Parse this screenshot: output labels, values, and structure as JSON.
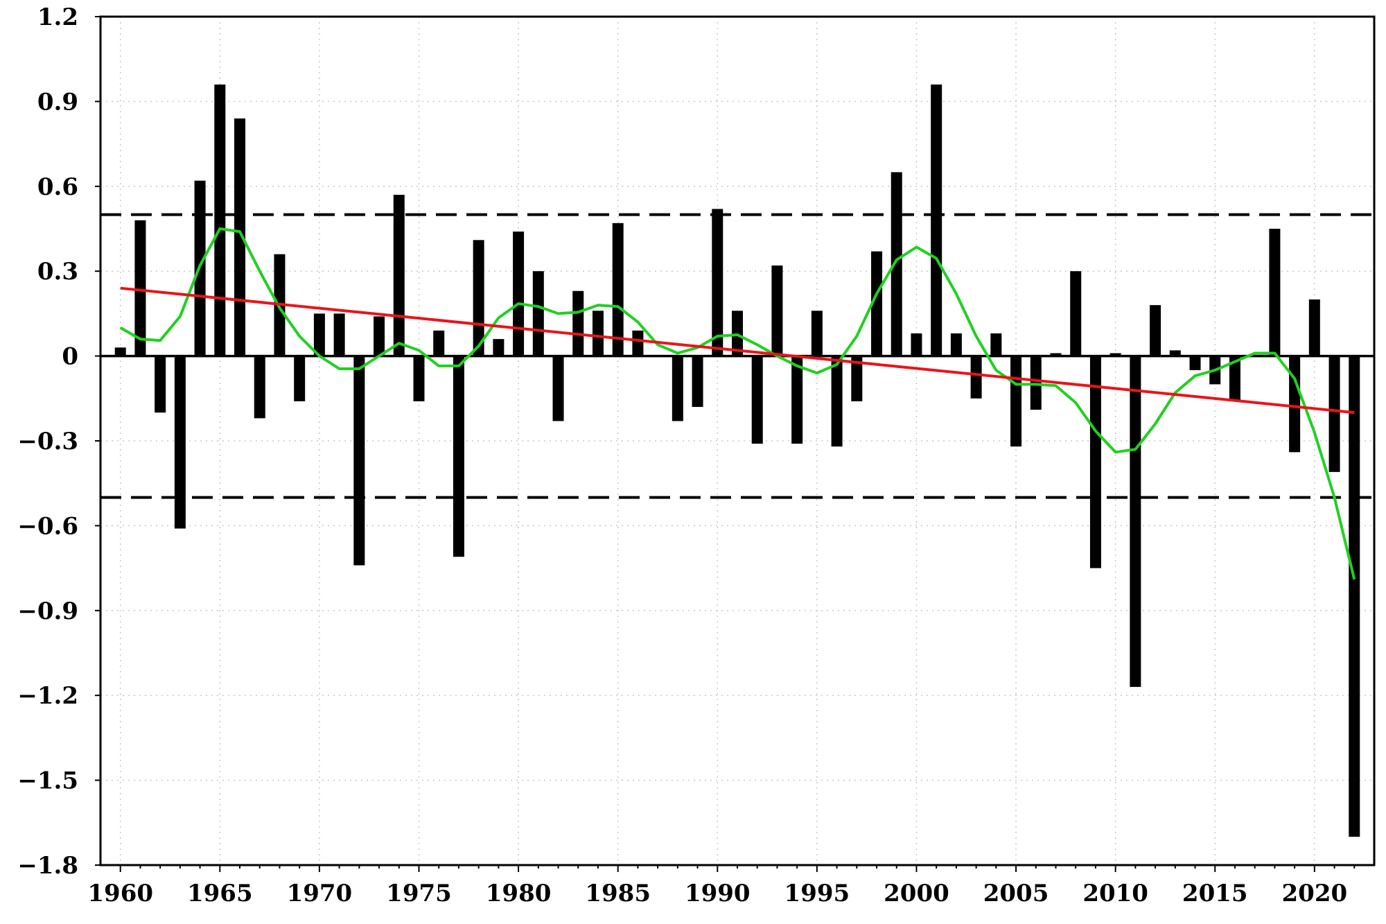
{
  "chart_data": {
    "type": "bar",
    "title": "",
    "xlabel": "",
    "ylabel": "",
    "xlim": [
      1959,
      2023
    ],
    "ylim": [
      -1.8,
      1.2
    ],
    "x_ticks": [
      "1960",
      "1965",
      "1970",
      "1975",
      "1980",
      "1985",
      "1990",
      "1995",
      "2000",
      "2005",
      "2010",
      "2015",
      "2020"
    ],
    "y_ticks": [
      "1.2",
      "0.9",
      "0.6",
      "0.3",
      "0",
      "−0.3",
      "−0.6",
      "−0.9",
      "−1.2",
      "−1.5",
      "−1.8"
    ],
    "y_tick_values": [
      1.2,
      0.9,
      0.6,
      0.3,
      0,
      -0.3,
      -0.6,
      -0.9,
      -1.2,
      -1.5,
      -1.8
    ],
    "grid": "dotted",
    "reference_lines": [
      0.5,
      -0.5
    ],
    "bars": {
      "color": "#000000",
      "years": [
        1960,
        1961,
        1962,
        1963,
        1964,
        1965,
        1966,
        1967,
        1968,
        1969,
        1970,
        1971,
        1972,
        1973,
        1974,
        1975,
        1976,
        1977,
        1978,
        1979,
        1980,
        1981,
        1982,
        1983,
        1984,
        1985,
        1986,
        1987,
        1988,
        1989,
        1990,
        1991,
        1992,
        1993,
        1994,
        1995,
        1996,
        1997,
        1998,
        1999,
        2000,
        2001,
        2002,
        2003,
        2004,
        2005,
        2006,
        2007,
        2008,
        2009,
        2010,
        2011,
        2012,
        2013,
        2014,
        2015,
        2016,
        2017,
        2018,
        2019,
        2020,
        2021,
        2022
      ],
      "values": [
        0.03,
        0.48,
        -0.2,
        -0.61,
        0.62,
        0.96,
        0.84,
        -0.22,
        0.36,
        -0.16,
        0.15,
        0.15,
        -0.74,
        0.14,
        0.57,
        -0.16,
        0.09,
        -0.71,
        0.41,
        0.06,
        0.44,
        0.3,
        -0.23,
        0.23,
        0.16,
        0.47,
        0.09,
        0.0,
        -0.23,
        -0.18,
        0.52,
        0.16,
        -0.31,
        0.32,
        -0.31,
        0.16,
        -0.32,
        -0.16,
        0.37,
        0.65,
        0.08,
        0.96,
        0.08,
        -0.15,
        0.08,
        -0.32,
        -0.19,
        0.01,
        0.3,
        -0.75,
        0.01,
        -1.17,
        0.18,
        0.02,
        -0.05,
        -0.1,
        -0.16,
        0.0,
        0.45,
        -0.34,
        0.2,
        -0.41,
        -1.7
      ]
    },
    "series": [
      {
        "type": "line",
        "color": "#e8141b",
        "x": [
          1960,
          2022
        ],
        "values": [
          0.24,
          -0.2
        ]
      },
      {
        "type": "line",
        "color": "#1fd11f",
        "x": [
          1960,
          1961,
          1962,
          1963,
          1964,
          1965,
          1966,
          1967,
          1968,
          1969,
          1970,
          1971,
          1972,
          1973,
          1974,
          1975,
          1976,
          1977,
          1978,
          1979,
          1980,
          1981,
          1982,
          1983,
          1984,
          1985,
          1986,
          1987,
          1988,
          1989,
          1990,
          1991,
          1992,
          1993,
          1994,
          1995,
          1996,
          1997,
          1998,
          1999,
          2000,
          2001,
          2002,
          2003,
          2004,
          2005,
          2006,
          2007,
          2008,
          2009,
          2010,
          2011,
          2012,
          2013,
          2014,
          2015,
          2016,
          2017,
          2018,
          2019,
          2020,
          2021,
          2022
        ],
        "values": [
          0.1,
          0.06,
          0.055,
          0.14,
          0.32,
          0.45,
          0.44,
          0.3,
          0.17,
          0.07,
          0.0,
          -0.045,
          -0.045,
          0.0,
          0.045,
          0.02,
          -0.035,
          -0.035,
          0.035,
          0.135,
          0.185,
          0.175,
          0.15,
          0.155,
          0.18,
          0.175,
          0.12,
          0.04,
          0.01,
          0.03,
          0.07,
          0.075,
          0.04,
          0.0,
          -0.035,
          -0.06,
          -0.03,
          0.07,
          0.22,
          0.34,
          0.385,
          0.345,
          0.22,
          0.07,
          -0.05,
          -0.1,
          -0.1,
          -0.105,
          -0.165,
          -0.265,
          -0.34,
          -0.33,
          -0.24,
          -0.13,
          -0.07,
          -0.05,
          -0.02,
          0.01,
          0.01,
          -0.08,
          -0.27,
          -0.5,
          -0.79
        ]
      }
    ]
  }
}
